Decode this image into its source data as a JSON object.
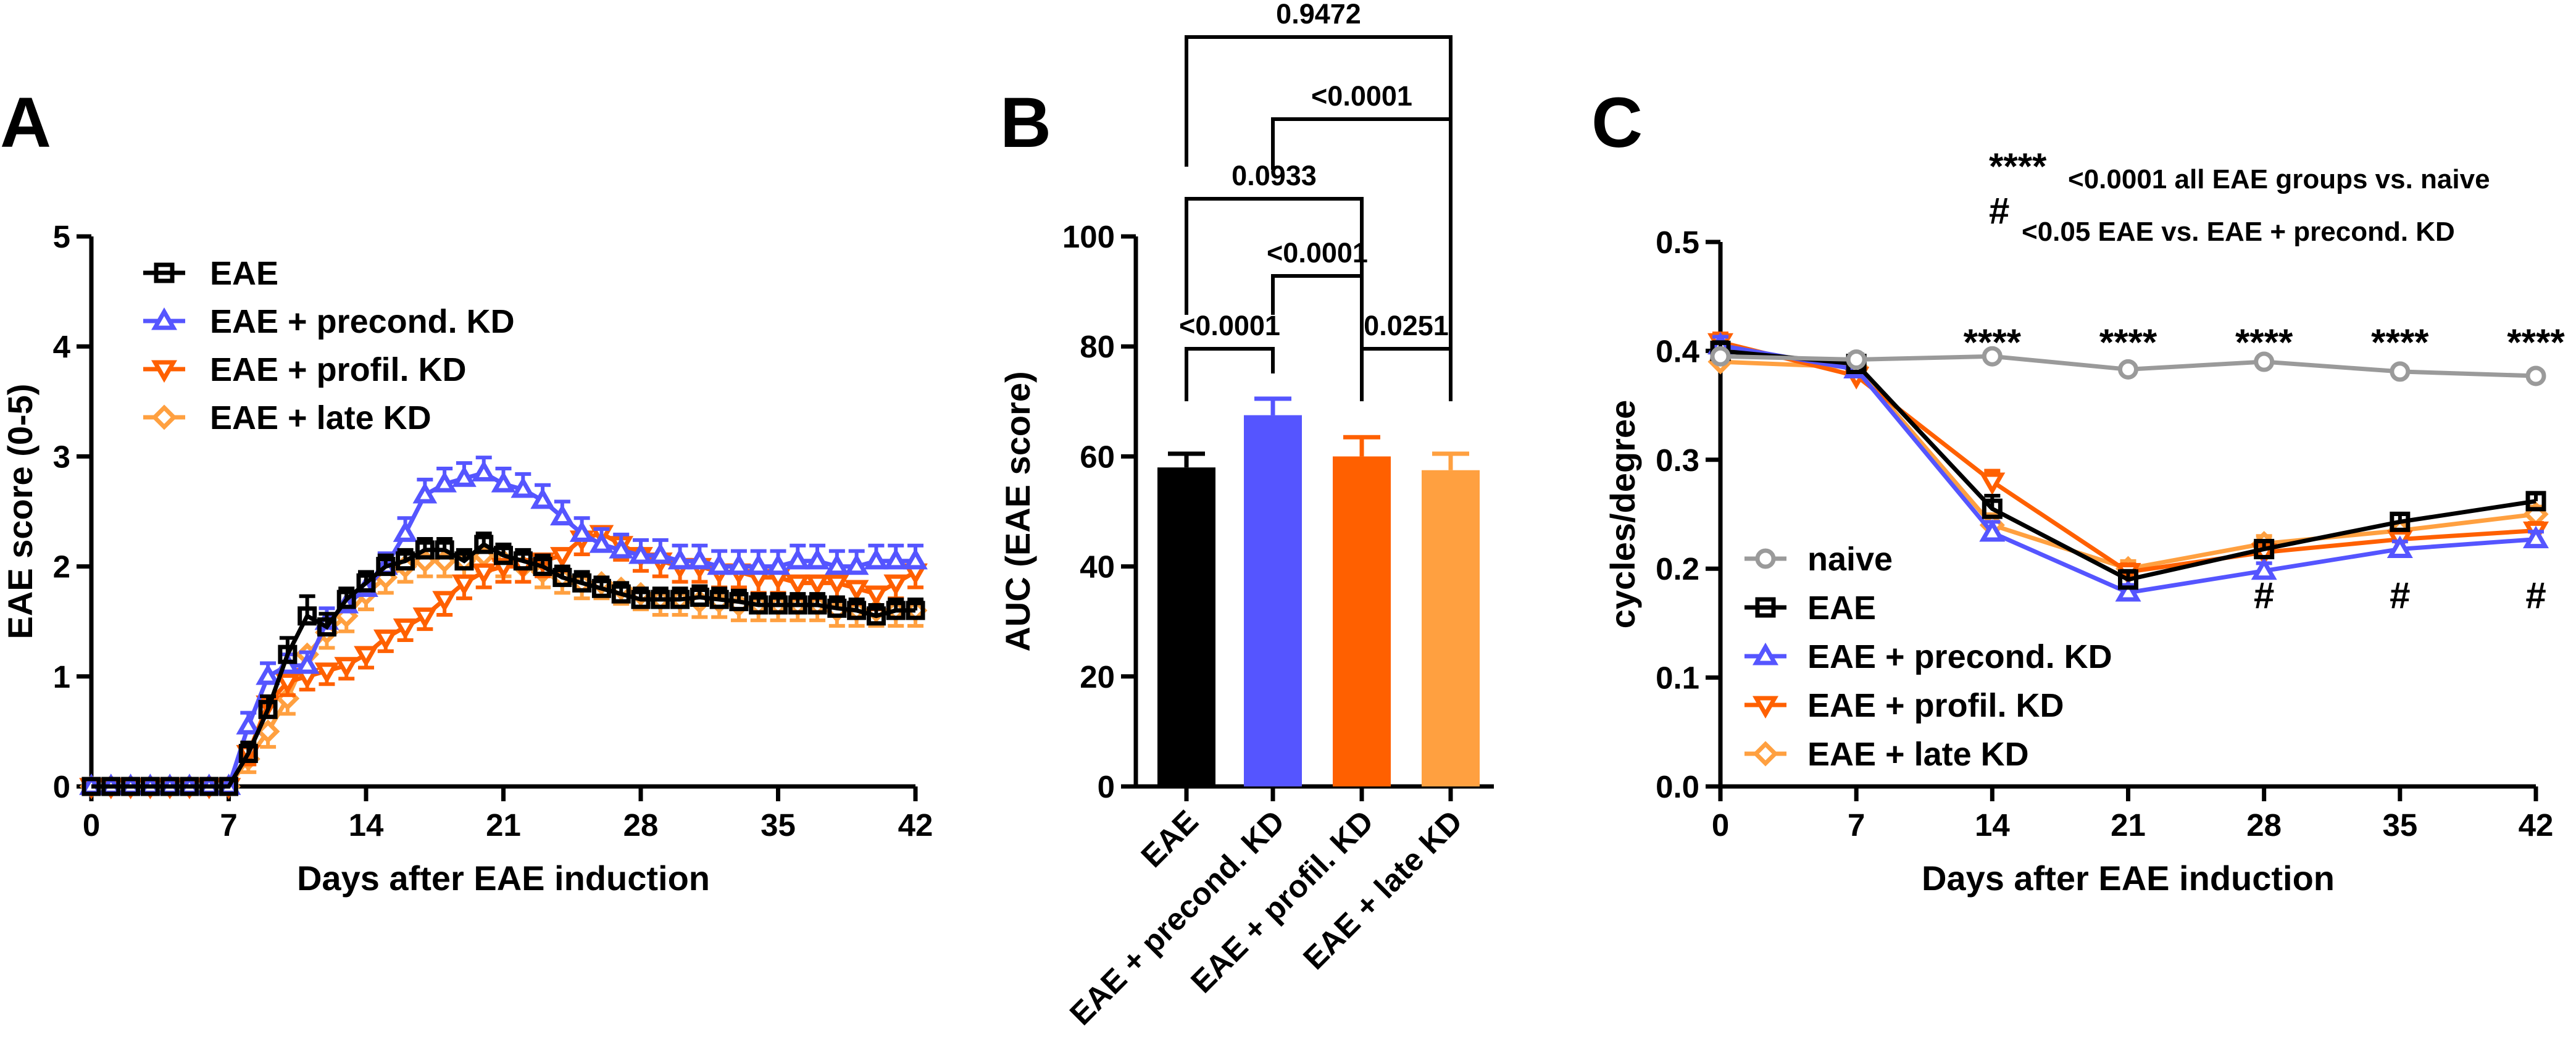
{
  "colors": {
    "EAE": "#000000",
    "EAE + precond. KD": "#5555ff",
    "EAE + profil. KD": "#ff6000",
    "EAE + late KD": "#ffa040",
    "naive": "#9a9a9a"
  },
  "chart_data": [
    {
      "panel": "A",
      "type": "line",
      "xlabel": "Days after EAE induction",
      "ylabel": "EAE score (0-5)",
      "xlim": [
        0,
        42
      ],
      "ylim": [
        0,
        5
      ],
      "xticks": [
        0,
        7,
        14,
        21,
        28,
        35,
        42
      ],
      "yticks": [
        0,
        1,
        2,
        3,
        4,
        5
      ],
      "x": [
        0,
        1,
        2,
        3,
        4,
        5,
        6,
        7,
        8,
        9,
        10,
        11,
        12,
        13,
        14,
        15,
        16,
        17,
        18,
        19,
        20,
        21,
        22,
        23,
        24,
        25,
        26,
        27,
        28,
        29,
        30,
        31,
        32,
        33,
        34,
        35,
        36,
        37,
        38,
        39,
        40,
        41,
        42
      ],
      "series": [
        {
          "name": "EAE",
          "marker": "square",
          "values": [
            0,
            0,
            0,
            0,
            0,
            0,
            0,
            0,
            0.3,
            0.7,
            1.2,
            1.55,
            1.45,
            1.7,
            1.85,
            2.0,
            2.05,
            2.15,
            2.15,
            2.05,
            2.2,
            2.1,
            2.05,
            2.0,
            1.9,
            1.85,
            1.8,
            1.75,
            1.7,
            1.7,
            1.7,
            1.72,
            1.7,
            1.68,
            1.65,
            1.65,
            1.65,
            1.65,
            1.62,
            1.6,
            1.55,
            1.6,
            1.6
          ],
          "err": [
            0,
            0,
            0,
            0,
            0,
            0,
            0,
            0,
            0.1,
            0.12,
            0.15,
            0.18,
            0.12,
            0.1,
            0.1,
            0.1,
            0.1,
            0.1,
            0.1,
            0.1,
            0.1,
            0.1,
            0.1,
            0.1,
            0.1,
            0.1,
            0.1,
            0.1,
            0.1,
            0.1,
            0.1,
            0.1,
            0.1,
            0.1,
            0.1,
            0.1,
            0.1,
            0.1,
            0.1,
            0.1,
            0.1,
            0.1,
            0.1
          ]
        },
        {
          "name": "EAE + precond. KD",
          "marker": "triangle-up",
          "values": [
            0,
            0,
            0,
            0,
            0,
            0,
            0,
            0,
            0.55,
            1.0,
            1.1,
            1.1,
            1.5,
            1.65,
            1.8,
            2.0,
            2.3,
            2.65,
            2.75,
            2.8,
            2.85,
            2.75,
            2.7,
            2.6,
            2.45,
            2.3,
            2.2,
            2.15,
            2.1,
            2.1,
            2.05,
            2.05,
            2.0,
            2.0,
            2.0,
            2.0,
            2.05,
            2.05,
            2.0,
            2.0,
            2.05,
            2.05,
            2.05
          ],
          "err": [
            0,
            0,
            0,
            0,
            0,
            0,
            0,
            0,
            0.12,
            0.12,
            0.1,
            0.12,
            0.12,
            0.12,
            0.12,
            0.12,
            0.14,
            0.14,
            0.14,
            0.14,
            0.14,
            0.14,
            0.14,
            0.14,
            0.14,
            0.14,
            0.14,
            0.14,
            0.14,
            0.14,
            0.14,
            0.14,
            0.14,
            0.14,
            0.14,
            0.14,
            0.14,
            0.14,
            0.14,
            0.14,
            0.14,
            0.14,
            0.14
          ]
        },
        {
          "name": "EAE + profil. KD",
          "marker": "triangle-down",
          "values": [
            0,
            0,
            0,
            0,
            0,
            0,
            0,
            0,
            0.3,
            0.75,
            0.95,
            1.0,
            1.05,
            1.1,
            1.2,
            1.35,
            1.45,
            1.55,
            1.7,
            1.85,
            1.95,
            2.0,
            2.0,
            2.05,
            2.1,
            2.25,
            2.3,
            2.2,
            2.1,
            2.05,
            2.0,
            2.0,
            1.95,
            1.95,
            1.9,
            1.9,
            1.85,
            1.85,
            1.85,
            1.8,
            1.75,
            1.85,
            1.95
          ],
          "err": [
            0,
            0,
            0,
            0,
            0,
            0,
            0,
            0,
            0.1,
            0.12,
            0.12,
            0.12,
            0.12,
            0.12,
            0.12,
            0.12,
            0.12,
            0.12,
            0.14,
            0.14,
            0.14,
            0.14,
            0.14,
            0.14,
            0.14,
            0.14,
            0.14,
            0.14,
            0.14,
            0.14,
            0.14,
            0.14,
            0.14,
            0.14,
            0.14,
            0.14,
            0.14,
            0.14,
            0.14,
            0.14,
            0.14,
            0.14,
            0.14
          ]
        },
        {
          "name": "EAE + late KD",
          "marker": "diamond",
          "values": [
            0,
            0,
            0,
            0,
            0,
            0,
            0,
            0,
            0.25,
            0.5,
            0.8,
            1.2,
            1.4,
            1.55,
            1.75,
            1.9,
            2.0,
            2.05,
            2.05,
            2.05,
            2.1,
            2.05,
            2.0,
            1.95,
            1.9,
            1.85,
            1.85,
            1.8,
            1.75,
            1.7,
            1.7,
            1.68,
            1.68,
            1.65,
            1.65,
            1.65,
            1.65,
            1.65,
            1.6,
            1.6,
            1.6,
            1.6,
            1.6
          ],
          "err": [
            0,
            0,
            0,
            0,
            0,
            0,
            0,
            0,
            0.12,
            0.14,
            0.14,
            0.14,
            0.14,
            0.14,
            0.14,
            0.14,
            0.14,
            0.14,
            0.14,
            0.14,
            0.14,
            0.14,
            0.14,
            0.14,
            0.14,
            0.14,
            0.14,
            0.14,
            0.14,
            0.14,
            0.14,
            0.14,
            0.14,
            0.14,
            0.14,
            0.14,
            0.14,
            0.14,
            0.14,
            0.14,
            0.14,
            0.14,
            0.14
          ]
        }
      ],
      "legend": [
        "EAE",
        "EAE + precond. KD",
        "EAE + profil. KD",
        "EAE + late KD"
      ]
    },
    {
      "panel": "B",
      "type": "bar",
      "ylabel": "AUC (EAE score)",
      "ylim": [
        0,
        100
      ],
      "yticks": [
        0,
        20,
        40,
        60,
        80,
        100
      ],
      "categories": [
        "EAE",
        "EAE + precond. KD",
        "EAE + profil. KD",
        "EAE + late KD"
      ],
      "values": [
        58,
        67.5,
        60,
        57.5
      ],
      "err": [
        2.5,
        3,
        3.5,
        3
      ],
      "comparisons": [
        {
          "a": 0,
          "b": 1,
          "label": "<0.0001"
        },
        {
          "a": 2,
          "b": 3,
          "label": "0.0251"
        },
        {
          "a": 1,
          "b": 2,
          "label": "<0.0001"
        },
        {
          "a": 0,
          "b": 2,
          "label": "0.0933"
        },
        {
          "a": 1,
          "b": 3,
          "label": "<0.0001"
        },
        {
          "a": 0,
          "b": 3,
          "label": "0.9472"
        }
      ]
    },
    {
      "panel": "C",
      "type": "line",
      "xlabel": "Days after EAE induction",
      "ylabel": "cycles/degree",
      "xlim": [
        0,
        42
      ],
      "ylim": [
        0,
        0.5
      ],
      "xticks": [
        0,
        7,
        14,
        21,
        28,
        35,
        42
      ],
      "yticks": [
        "0.0",
        "0.1",
        "0.2",
        "0.3",
        "0.4",
        "0.5"
      ],
      "x": [
        0,
        7,
        14,
        21,
        28,
        35,
        42
      ],
      "series": [
        {
          "name": "naive",
          "marker": "circle",
          "values": [
            0.395,
            0.392,
            0.395,
            0.383,
            0.39,
            0.381,
            0.377
          ],
          "err": [
            0.004,
            0.005,
            0.004,
            0.004,
            0.004,
            0.004,
            0.004
          ]
        },
        {
          "name": "EAE",
          "marker": "square",
          "values": [
            0.4,
            0.388,
            0.255,
            0.19,
            0.218,
            0.243,
            0.262
          ],
          "err": [
            0.008,
            0.008,
            0.012,
            0.008,
            0.007,
            0.007,
            0.007
          ]
        },
        {
          "name": "EAE + precond. KD",
          "marker": "triangle-up",
          "values": [
            0.405,
            0.383,
            0.233,
            0.178,
            0.198,
            0.218,
            0.227
          ],
          "err": [
            0.008,
            0.008,
            0.01,
            0.007,
            0.007,
            0.007,
            0.007
          ]
        },
        {
          "name": "EAE + profil. KD",
          "marker": "triangle-down",
          "values": [
            0.408,
            0.377,
            0.28,
            0.197,
            0.215,
            0.227,
            0.235
          ],
          "err": [
            0.008,
            0.008,
            0.01,
            0.007,
            0.007,
            0.007,
            0.007
          ]
        },
        {
          "name": "EAE + late KD",
          "marker": "diamond",
          "values": [
            0.39,
            0.385,
            0.24,
            0.2,
            0.223,
            0.235,
            0.25
          ],
          "err": [
            0.008,
            0.008,
            0.01,
            0.007,
            0.007,
            0.007,
            0.007
          ]
        }
      ],
      "stars": {
        "label": "****",
        "days": [
          14,
          21,
          28,
          35,
          42
        ]
      },
      "hashes": {
        "label": "#",
        "days": [
          28,
          35,
          42
        ]
      },
      "legend": [
        "naive",
        "EAE",
        "EAE + precond. KD",
        "EAE + profil. KD",
        "EAE + late KD"
      ],
      "annotations": [
        {
          "symbol": "****",
          "text": "<0.0001 all EAE groups vs. naive"
        },
        {
          "symbol": "#",
          "text": "<0.05 EAE vs. EAE + precond. KD"
        }
      ]
    }
  ],
  "panel_labels": [
    "A",
    "B",
    "C"
  ]
}
